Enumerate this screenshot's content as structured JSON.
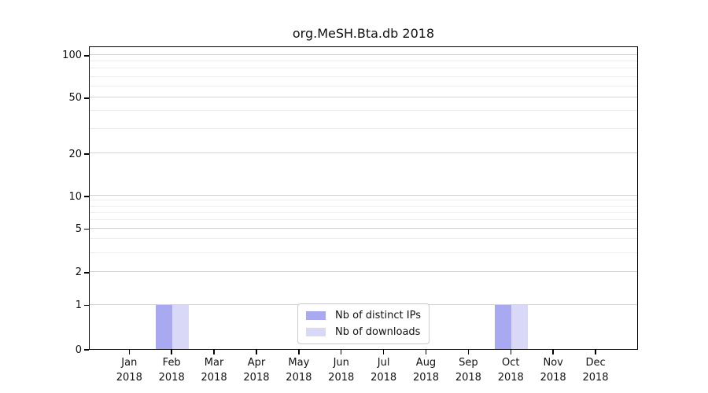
{
  "title": "org.MeSH.Bta.db 2018",
  "chart_data": {
    "type": "bar",
    "title": "org.MeSH.Bta.db 2018",
    "categories": [
      "Jan 2018",
      "Feb 2018",
      "Mar 2018",
      "Apr 2018",
      "May 2018",
      "Jun 2018",
      "Jul 2018",
      "Aug 2018",
      "Sep 2018",
      "Oct 2018",
      "Nov 2018",
      "Dec 2018"
    ],
    "months": [
      "Jan",
      "Feb",
      "Mar",
      "Apr",
      "May",
      "Jun",
      "Jul",
      "Aug",
      "Sep",
      "Oct",
      "Nov",
      "Dec"
    ],
    "year_label": "2018",
    "series": [
      {
        "name": "Nb of distinct IPs",
        "color": "#a9a9f2",
        "values": [
          0,
          1,
          0,
          0,
          0,
          0,
          0,
          0,
          0,
          1,
          0,
          0
        ]
      },
      {
        "name": "Nb of downloads",
        "color": "#d9d9f7",
        "values": [
          0,
          1,
          0,
          0,
          0,
          0,
          0,
          0,
          0,
          1,
          0,
          0
        ]
      }
    ],
    "yticks": [
      0,
      1,
      2,
      5,
      10,
      20,
      50,
      100
    ],
    "minor_yticks": [
      3,
      4,
      6,
      7,
      8,
      9,
      30,
      40,
      60,
      70,
      80,
      90
    ],
    "ylim": [
      0,
      110
    ],
    "yscale": "log-like with linear 0-1 segment",
    "grid": "horizontal",
    "legend_position": "lower center",
    "colors": {
      "major_grid": "#d4d4d4",
      "minor_grid": "#ededed",
      "axis": "#000000",
      "text": "#111111"
    }
  }
}
